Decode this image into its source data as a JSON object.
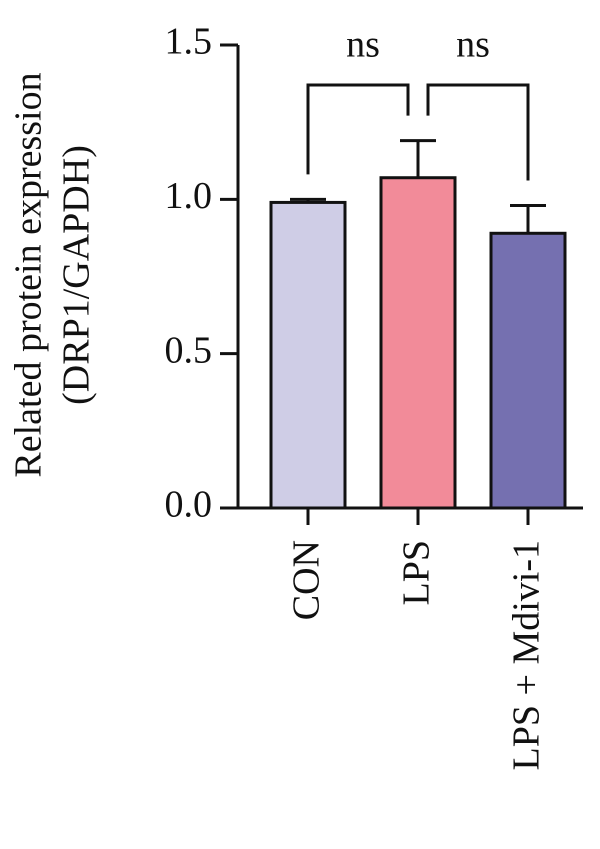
{
  "chart_data": {
    "type": "bar",
    "ylabel": [
      "Related protein expression",
      "(DRP1/GAPDH)"
    ],
    "categories": [
      "CON",
      "LPS",
      "LPS + Mdivi-1"
    ],
    "values": [
      0.99,
      1.07,
      0.89
    ],
    "errors": [
      0.01,
      0.12,
      0.09
    ],
    "colors": [
      "#cfcde6",
      "#f28b99",
      "#7570b0"
    ],
    "ylim": [
      0,
      1.5
    ],
    "yticks": [
      {
        "value": 0,
        "label": "0.0"
      },
      0.5,
      {
        "value": 1,
        "label": "1.0"
      },
      1.5
    ],
    "annotations": [
      "ns",
      "ns"
    ]
  }
}
